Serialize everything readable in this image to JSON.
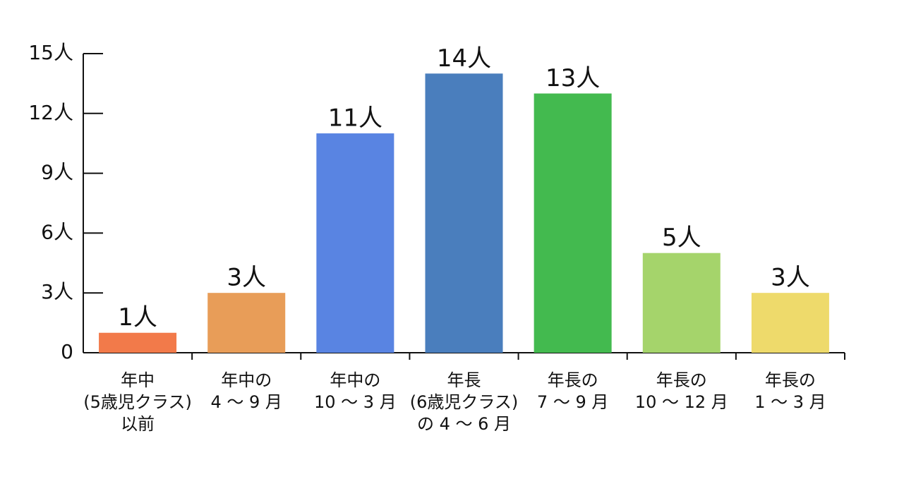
{
  "chart_data": {
    "type": "bar",
    "categories": [
      [
        "年中",
        "(5歳児クラス)",
        "以前"
      ],
      [
        "年中の",
        "4 〜 9 月"
      ],
      [
        "年中の",
        "10 〜 3 月"
      ],
      [
        "年長",
        "(6歳児クラス)",
        "の 4 〜 6 月"
      ],
      [
        "年長の",
        "7 〜 9 月"
      ],
      [
        "年長の",
        "10 〜 12 月"
      ],
      [
        "年長の",
        "1 〜 3 月"
      ]
    ],
    "values": [
      1,
      3,
      11,
      14,
      13,
      5,
      3
    ],
    "value_labels": [
      "1人",
      "3人",
      "11人",
      "14人",
      "13人",
      "5人",
      "3人"
    ],
    "colors": [
      "#f27a4a",
      "#e89d58",
      "#5984e2",
      "#4a7ebd",
      "#43ba4f",
      "#a5d46b",
      "#eeda6b"
    ],
    "ylim": [
      0,
      15
    ],
    "yticks": [
      0,
      {
        "value": 3,
        "label": "3人"
      },
      {
        "value": 6,
        "label": "6人"
      },
      {
        "value": 9,
        "label": "9人"
      },
      {
        "value": 12,
        "label": "12人"
      },
      {
        "value": 15,
        "label": "15人"
      }
    ]
  }
}
